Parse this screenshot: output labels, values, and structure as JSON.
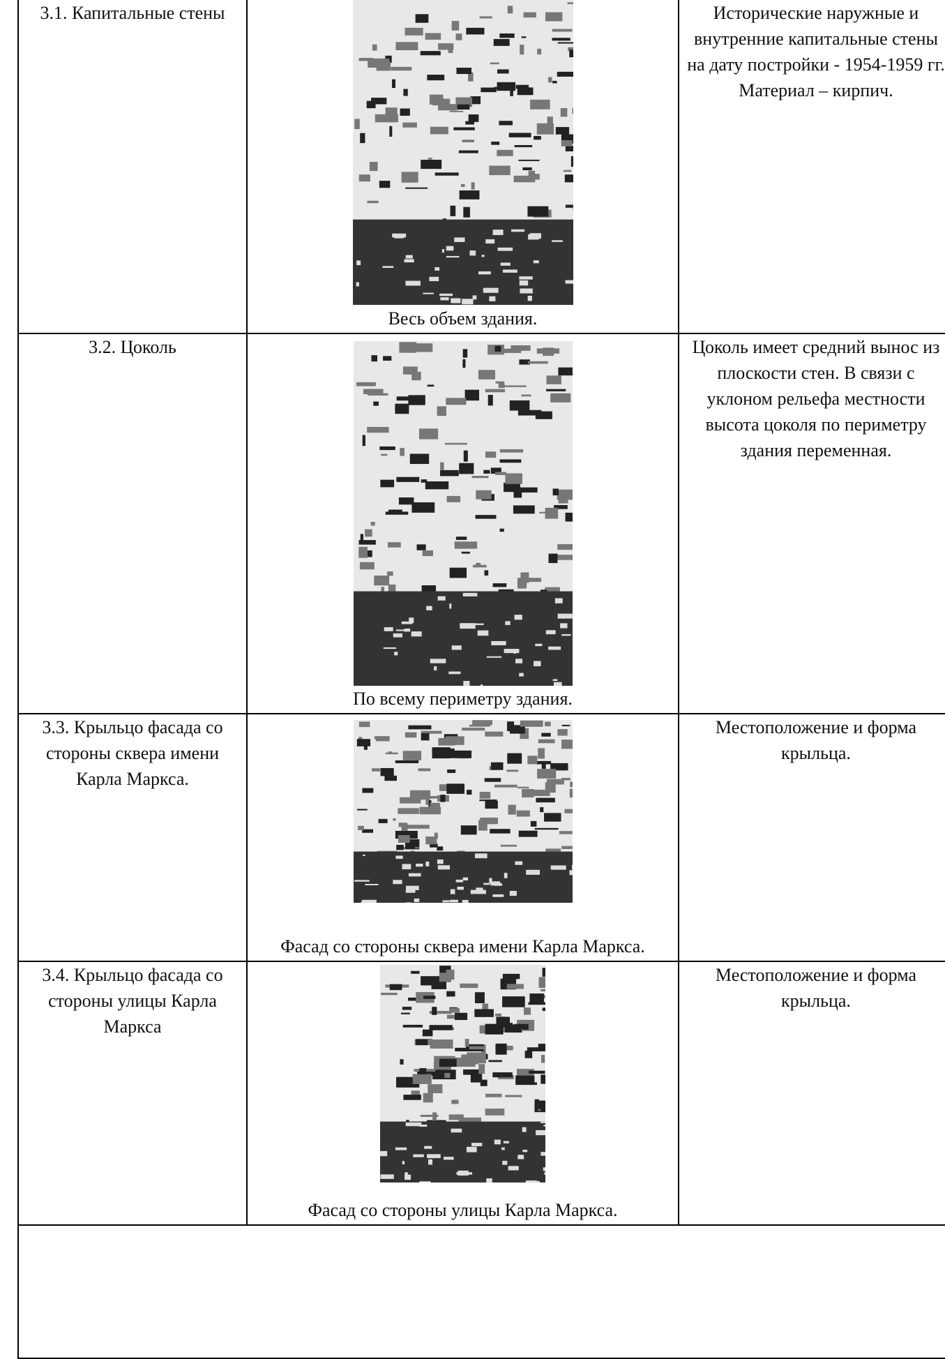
{
  "table": {
    "rows": [
      {
        "element": "3.1. Капитальные стены",
        "photo_caption": "Весь объем здания.",
        "description": "Исторические наружные и внутренние капитальные стены на дату постройки - 1954-1959 гг. Материал – кирпич."
      },
      {
        "element": "3.2. Цоколь",
        "photo_caption": "По всему периметру здания.",
        "description": "Цоколь имеет средний вынос из плоскости стен. В связи с уклоном рельефа местности высота цоколя по периметру здания переменная."
      },
      {
        "element": "3.3. Крыльцо фасада со стороны сквера имени Карла Маркса.",
        "photo_caption": "Фасад со стороны сквера имени Карла Маркса.",
        "description": "Местоположение и форма крыльца."
      },
      {
        "element": "3.4. Крыльцо фасада со стороны улицы Карла Маркса",
        "photo_caption": "Фасад со стороны улицы Карла Маркса.",
        "description": "Местоположение и форма крыльца."
      }
    ]
  }
}
